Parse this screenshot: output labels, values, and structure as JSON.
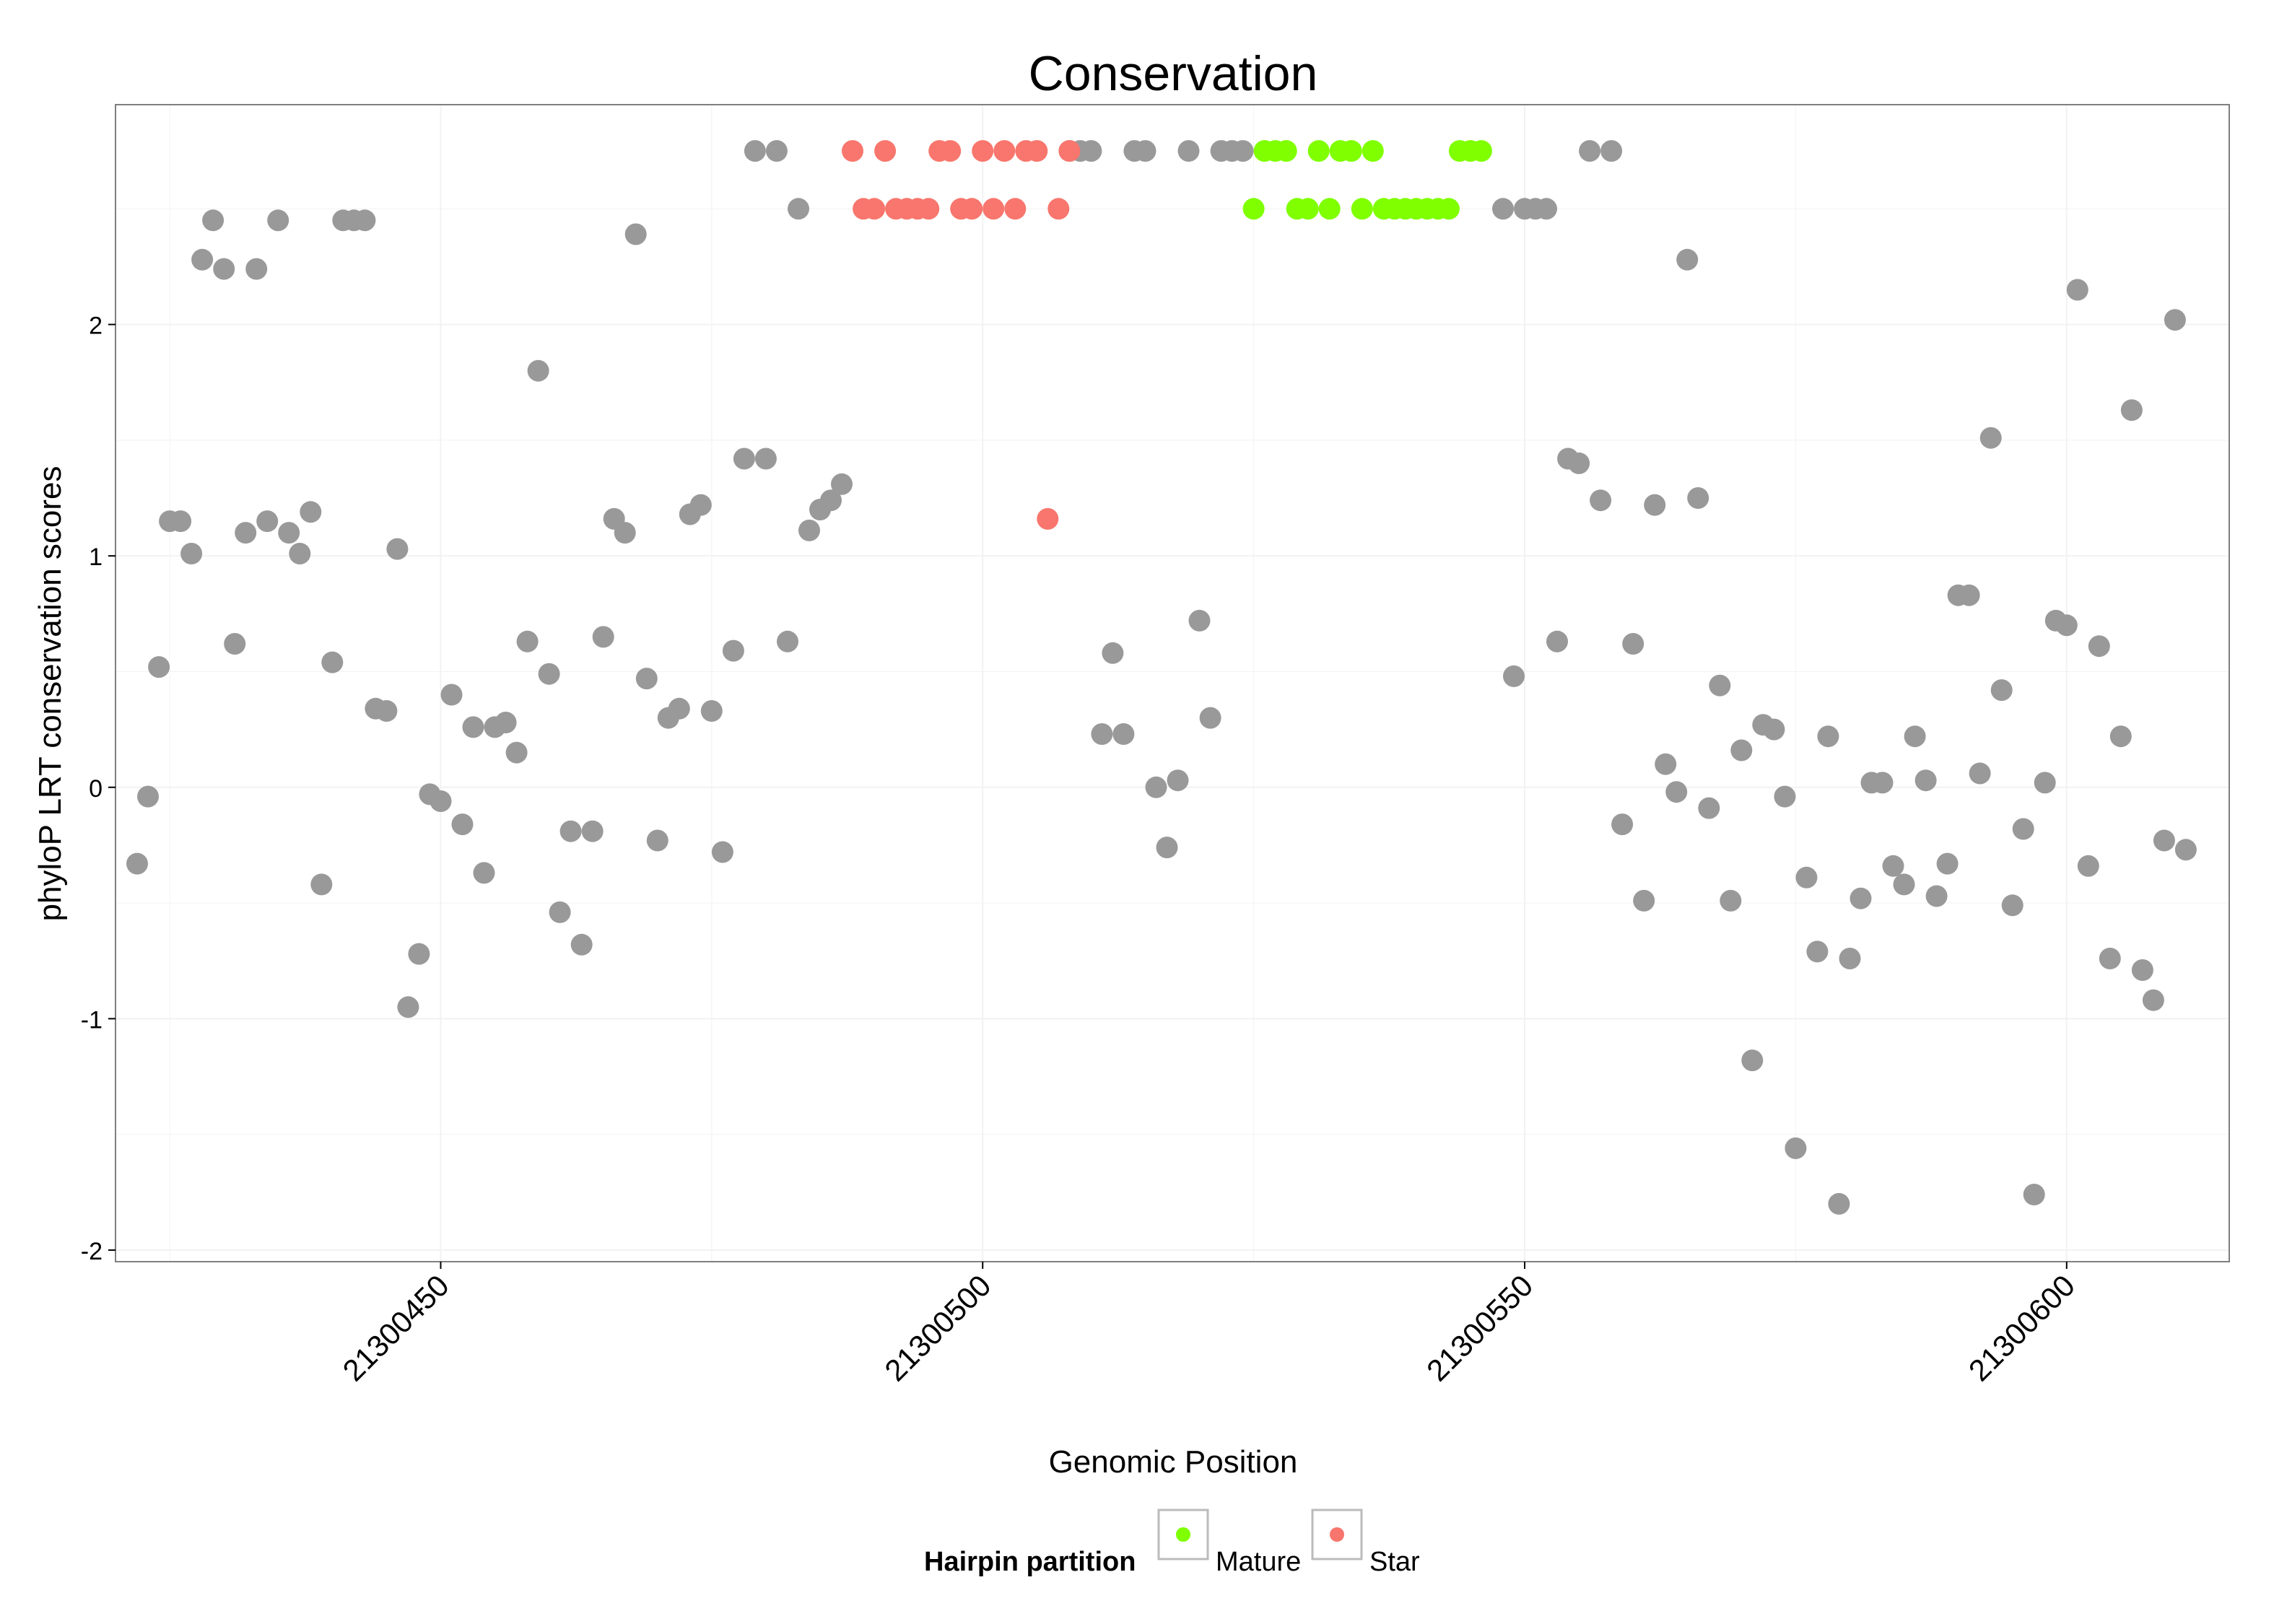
{
  "chart_data": {
    "type": "scatter",
    "title": "Conservation",
    "xlabel": "Genomic Position",
    "ylabel": "phyloP LRT conservation scores",
    "xlim": [
      21300420,
      21300615
    ],
    "ylim": [
      -2.05,
      2.95
    ],
    "x_ticks": [
      {
        "value": 21300450,
        "label": "21300450"
      },
      {
        "value": 21300500,
        "label": "21300500"
      },
      {
        "value": 21300550,
        "label": "21300550"
      },
      {
        "value": 21300600,
        "label": "21300600"
      }
    ],
    "y_ticks": [
      {
        "value": -2,
        "label": "-2"
      },
      {
        "value": -1,
        "label": "-1"
      },
      {
        "value": 0,
        "label": "0"
      },
      {
        "value": 1,
        "label": "1"
      },
      {
        "value": 2,
        "label": "2"
      }
    ],
    "grid": true,
    "legend": {
      "title": "Hairpin partition",
      "placement": "bottom",
      "entries": [
        {
          "label": "Mature",
          "color": "#7FFF00"
        },
        {
          "label": "Star",
          "color": "#F8766D"
        }
      ]
    },
    "colors": {
      "other": "#999999",
      "mature": "#7FFF00",
      "star": "#F8766D",
      "panel_border": "#7f7f7f",
      "gridline": "#f2f2f2"
    },
    "series": [
      {
        "group": "other",
        "points": [
          [
            21300422,
            -0.33
          ],
          [
            21300423,
            -0.04
          ],
          [
            21300424,
            0.52
          ],
          [
            21300425,
            1.15
          ],
          [
            21300426,
            1.15
          ],
          [
            21300427,
            1.01
          ],
          [
            21300428,
            2.28
          ],
          [
            21300429,
            2.45
          ],
          [
            21300430,
            2.24
          ],
          [
            21300431,
            0.62
          ],
          [
            21300432,
            1.1
          ],
          [
            21300433,
            2.24
          ],
          [
            21300434,
            1.15
          ],
          [
            21300435,
            2.45
          ],
          [
            21300436,
            1.1
          ],
          [
            21300437,
            1.01
          ],
          [
            21300438,
            1.19
          ],
          [
            21300439,
            -0.42
          ],
          [
            21300440,
            0.54
          ],
          [
            21300441,
            2.45
          ],
          [
            21300442,
            2.45
          ],
          [
            21300443,
            2.45
          ],
          [
            21300444,
            0.34
          ],
          [
            21300445,
            0.33
          ],
          [
            21300446,
            1.03
          ],
          [
            21300447,
            -0.95
          ],
          [
            21300448,
            -0.72
          ],
          [
            21300449,
            -0.03
          ],
          [
            21300450,
            -0.06
          ],
          [
            21300451,
            0.4
          ],
          [
            21300452,
            -0.16
          ],
          [
            21300453,
            0.26
          ],
          [
            21300454,
            -0.37
          ],
          [
            21300455,
            0.26
          ],
          [
            21300456,
            0.28
          ],
          [
            21300457,
            0.15
          ],
          [
            21300458,
            0.63
          ],
          [
            21300459,
            1.8
          ],
          [
            21300460,
            0.49
          ],
          [
            21300461,
            -0.54
          ],
          [
            21300462,
            -0.19
          ],
          [
            21300463,
            -0.68
          ],
          [
            21300464,
            -0.19
          ],
          [
            21300465,
            0.65
          ],
          [
            21300466,
            1.16
          ],
          [
            21300467,
            1.1
          ],
          [
            21300468,
            2.39
          ],
          [
            21300469,
            0.47
          ],
          [
            21300470,
            -0.23
          ],
          [
            21300471,
            0.3
          ],
          [
            21300472,
            0.34
          ],
          [
            21300473,
            1.18
          ],
          [
            21300474,
            1.22
          ],
          [
            21300475,
            0.33
          ],
          [
            21300476,
            -0.28
          ],
          [
            21300477,
            0.59
          ],
          [
            21300478,
            1.42
          ],
          [
            21300479,
            2.75
          ],
          [
            21300480,
            1.42
          ],
          [
            21300481,
            2.75
          ],
          [
            21300482,
            0.63
          ],
          [
            21300483,
            2.5
          ],
          [
            21300484,
            1.11
          ],
          [
            21300485,
            1.2
          ],
          [
            21300486,
            1.24
          ],
          [
            21300487,
            1.31
          ],
          [
            21300508,
            2.75
          ],
          [
            21300509,
            2.75
          ],
          [
            21300510,
            2.75
          ],
          [
            21300511,
            0.23
          ],
          [
            21300512,
            0.58
          ],
          [
            21300513,
            0.23
          ],
          [
            21300514,
            2.75
          ],
          [
            21300515,
            2.75
          ],
          [
            21300516,
            0.0
          ],
          [
            21300517,
            -0.26
          ],
          [
            21300518,
            0.03
          ],
          [
            21300519,
            2.75
          ],
          [
            21300520,
            0.72
          ],
          [
            21300521,
            0.3
          ],
          [
            21300522,
            2.75
          ],
          [
            21300523,
            2.75
          ],
          [
            21300524,
            2.75
          ],
          [
            21300548,
            2.5
          ],
          [
            21300549,
            0.48
          ],
          [
            21300550,
            2.5
          ],
          [
            21300551,
            2.5
          ],
          [
            21300552,
            2.5
          ],
          [
            21300553,
            0.63
          ],
          [
            21300554,
            1.42
          ],
          [
            21300555,
            1.4
          ],
          [
            21300556,
            2.75
          ],
          [
            21300557,
            1.24
          ],
          [
            21300558,
            2.75
          ],
          [
            21300559,
            -0.16
          ],
          [
            21300560,
            0.62
          ],
          [
            21300561,
            -0.49
          ],
          [
            21300562,
            1.22
          ],
          [
            21300563,
            0.1
          ],
          [
            21300564,
            -0.02
          ],
          [
            21300565,
            2.28
          ],
          [
            21300566,
            1.25
          ],
          [
            21300567,
            -0.09
          ],
          [
            21300568,
            0.44
          ],
          [
            21300569,
            -0.49
          ],
          [
            21300570,
            0.16
          ],
          [
            21300571,
            -1.18
          ],
          [
            21300572,
            0.27
          ],
          [
            21300573,
            0.25
          ],
          [
            21300574,
            -0.04
          ],
          [
            21300575,
            -1.56
          ],
          [
            21300576,
            -0.39
          ],
          [
            21300577,
            -0.71
          ],
          [
            21300578,
            0.22
          ],
          [
            21300579,
            -1.8
          ],
          [
            21300580,
            -0.74
          ],
          [
            21300581,
            -0.48
          ],
          [
            21300582,
            0.02
          ],
          [
            21300583,
            0.02
          ],
          [
            21300584,
            -0.34
          ],
          [
            21300585,
            -0.42
          ],
          [
            21300586,
            0.22
          ],
          [
            21300587,
            0.03
          ],
          [
            21300588,
            -0.47
          ],
          [
            21300589,
            -0.33
          ],
          [
            21300590,
            0.83
          ],
          [
            21300591,
            0.83
          ],
          [
            21300592,
            0.06
          ],
          [
            21300593,
            1.51
          ],
          [
            21300594,
            0.42
          ],
          [
            21300595,
            -0.51
          ],
          [
            21300596,
            -0.18
          ],
          [
            21300597,
            -1.76
          ],
          [
            21300598,
            0.02
          ],
          [
            21300599,
            0.72
          ],
          [
            21300600,
            0.7
          ],
          [
            21300601,
            2.15
          ],
          [
            21300602,
            -0.34
          ],
          [
            21300603,
            0.61
          ],
          [
            21300604,
            -0.74
          ],
          [
            21300605,
            0.22
          ],
          [
            21300606,
            1.63
          ],
          [
            21300607,
            -0.79
          ],
          [
            21300608,
            -0.92
          ],
          [
            21300609,
            -0.23
          ],
          [
            21300610,
            2.02
          ],
          [
            21300611,
            -0.27
          ]
        ]
      },
      {
        "group": "star",
        "points": [
          [
            21300488,
            2.75
          ],
          [
            21300489,
            2.5
          ],
          [
            21300490,
            2.5
          ],
          [
            21300491,
            2.75
          ],
          [
            21300492,
            2.5
          ],
          [
            21300493,
            2.5
          ],
          [
            21300494,
            2.5
          ],
          [
            21300495,
            2.5
          ],
          [
            21300496,
            2.75
          ],
          [
            21300497,
            2.75
          ],
          [
            21300498,
            2.5
          ],
          [
            21300499,
            2.5
          ],
          [
            21300500,
            2.75
          ],
          [
            21300501,
            2.5
          ],
          [
            21300502,
            2.75
          ],
          [
            21300503,
            2.5
          ],
          [
            21300504,
            2.75
          ],
          [
            21300505,
            2.75
          ],
          [
            21300506,
            1.16
          ],
          [
            21300507,
            2.5
          ],
          [
            21300508,
            2.75
          ]
        ]
      },
      {
        "group": "mature",
        "points": [
          [
            21300525,
            2.5
          ],
          [
            21300526,
            2.75
          ],
          [
            21300527,
            2.75
          ],
          [
            21300528,
            2.75
          ],
          [
            21300529,
            2.5
          ],
          [
            21300530,
            2.5
          ],
          [
            21300531,
            2.75
          ],
          [
            21300532,
            2.5
          ],
          [
            21300533,
            2.75
          ],
          [
            21300534,
            2.75
          ],
          [
            21300535,
            2.5
          ],
          [
            21300536,
            2.75
          ],
          [
            21300537,
            2.5
          ],
          [
            21300538,
            2.5
          ],
          [
            21300539,
            2.5
          ],
          [
            21300540,
            2.5
          ],
          [
            21300541,
            2.5
          ],
          [
            21300542,
            2.5
          ],
          [
            21300543,
            2.5
          ],
          [
            21300544,
            2.75
          ],
          [
            21300545,
            2.75
          ],
          [
            21300546,
            2.75
          ]
        ]
      }
    ]
  }
}
